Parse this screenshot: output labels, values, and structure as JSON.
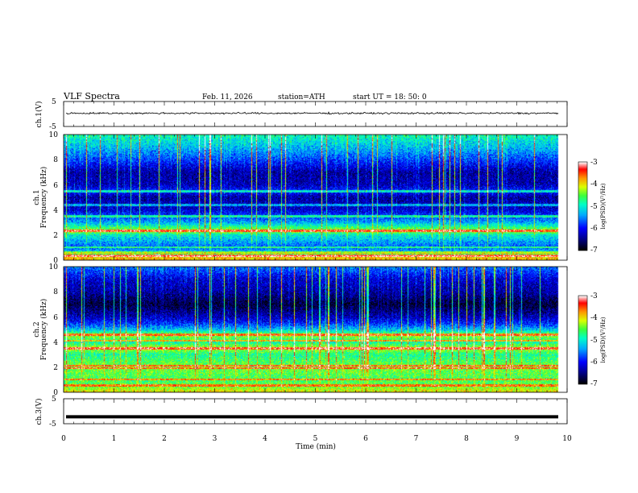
{
  "header": {
    "title": "VLF  Spectra",
    "date": "Feb. 11, 2026",
    "station": "station=ATH",
    "start": "start  UT  =   18: 50: 0"
  },
  "chart_data": [
    {
      "type": "line",
      "panel": "ch1-waveform",
      "ylabel": "ch.1(V)",
      "yticks": [
        "5",
        "-5"
      ],
      "ylim": [
        -5,
        5
      ],
      "xlim": [
        0,
        10
      ],
      "data_until": 9.83,
      "baseline": 0.3,
      "noise_amplitude": 0.6
    },
    {
      "type": "heatmap",
      "panel": "ch1-spectrogram",
      "ylabel_1": "ch.1",
      "ylabel_2": "Frequency  (kHz)",
      "ylim": [
        0,
        10
      ],
      "yticks": [
        "0",
        "2",
        "4",
        "6",
        "8",
        "10"
      ],
      "xlim": [
        0,
        10
      ],
      "data_until": 9.83,
      "colorbar": {
        "label": "log(PSD)(V²/Hz)",
        "range": [
          -7,
          -3
        ],
        "ticks": [
          "-3",
          "-4",
          "-5",
          "-6",
          "-7"
        ]
      },
      "profile_log_psd": [
        [
          0,
          -3.8
        ],
        [
          0.3,
          -4.0
        ],
        [
          0.6,
          -5.2
        ],
        [
          1.0,
          -5.7
        ],
        [
          2.0,
          -5.0
        ],
        [
          2.3,
          -4.2
        ],
        [
          3.0,
          -5.4
        ],
        [
          4.0,
          -6.2
        ],
        [
          5.0,
          -6.4
        ],
        [
          5.5,
          -5.9
        ],
        [
          6.0,
          -6.3
        ],
        [
          7.0,
          -6.4
        ],
        [
          8.0,
          -5.8
        ],
        [
          9.0,
          -5.3
        ],
        [
          10.0,
          -4.9
        ]
      ],
      "spectral_lines_khz": [
        0.3,
        0.6,
        1.0,
        2.3,
        3.5,
        4.4,
        5.5
      ]
    },
    {
      "type": "heatmap",
      "panel": "ch2-spectrogram",
      "ylabel_1": "ch.2",
      "ylabel_2": "Frequency  (kHz)",
      "ylim": [
        0,
        10
      ],
      "yticks": [
        "0",
        "2",
        "4",
        "6",
        "8",
        "10"
      ],
      "xlim": [
        0,
        10
      ],
      "data_until": 9.83,
      "colorbar": {
        "label": "log(PSD)(V²/Hz)",
        "range": [
          -7,
          -3
        ],
        "ticks": [
          "-3",
          "-4",
          "-5",
          "-6",
          "-7"
        ]
      },
      "profile_log_psd": [
        [
          0,
          -4.0
        ],
        [
          0.5,
          -4.5
        ],
        [
          1.0,
          -4.6
        ],
        [
          2.0,
          -4.4
        ],
        [
          3.0,
          -4.8
        ],
        [
          3.5,
          -4.2
        ],
        [
          4.0,
          -4.9
        ],
        [
          4.5,
          -4.3
        ],
        [
          5.0,
          -5.3
        ],
        [
          5.5,
          -5.9
        ],
        [
          6.0,
          -6.3
        ],
        [
          7.0,
          -6.8
        ],
        [
          8.0,
          -6.4
        ],
        [
          9.0,
          -6.2
        ],
        [
          10.0,
          -5.6
        ]
      ],
      "spectral_lines_khz": [
        0.5,
        1.0,
        1.9,
        2.1,
        3.5,
        4.1,
        4.6
      ]
    },
    {
      "type": "line",
      "panel": "ch3-waveform",
      "ylabel": "ch.3(V)",
      "yticks": [
        "5",
        "-5"
      ],
      "ylim": [
        -5,
        5
      ],
      "xlim": [
        0,
        10
      ],
      "data_until": 9.83,
      "baseline": -2.2,
      "xlabel": "Time  (min)",
      "xticks": [
        "0",
        "1",
        "2",
        "3",
        "4",
        "5",
        "6",
        "7",
        "8",
        "9",
        "10"
      ]
    }
  ]
}
